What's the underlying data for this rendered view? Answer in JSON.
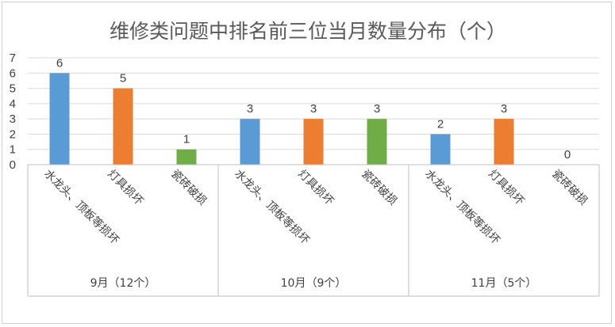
{
  "chart_data": {
    "type": "bar",
    "title": "维修类问题中排名前三位当月数量分布（个）",
    "xlabel": "",
    "ylabel": "",
    "ylim": [
      0,
      7
    ],
    "yticks": [
      0,
      1,
      2,
      3,
      4,
      5,
      6,
      7
    ],
    "grid": true,
    "legend": "none",
    "groups": [
      {
        "label": "9月（12个）",
        "bars": [
          {
            "category": "水龙头、顶板等损坏",
            "value": 6,
            "color": "#5b9bd5"
          },
          {
            "category": "灯具损坏",
            "value": 5,
            "color": "#ed7d31"
          },
          {
            "category": "瓷砖破损",
            "value": 1,
            "color": "#70ad47"
          }
        ]
      },
      {
        "label": "10月（9个）",
        "bars": [
          {
            "category": "水龙头、顶板等损坏",
            "value": 3,
            "color": "#5b9bd5"
          },
          {
            "category": "灯具损坏",
            "value": 3,
            "color": "#ed7d31"
          },
          {
            "category": "瓷砖破损",
            "value": 3,
            "color": "#70ad47"
          }
        ]
      },
      {
        "label": "11月（5个）",
        "bars": [
          {
            "category": "水龙头、顶板等损坏",
            "value": 2,
            "color": "#5b9bd5"
          },
          {
            "category": "灯具损坏",
            "value": 3,
            "color": "#ed7d31"
          },
          {
            "category": "瓷砖破损",
            "value": 0,
            "color": "#70ad47"
          }
        ]
      }
    ]
  },
  "colors": {
    "grid": "#d9d9d9",
    "axis": "#bfbfbf"
  }
}
